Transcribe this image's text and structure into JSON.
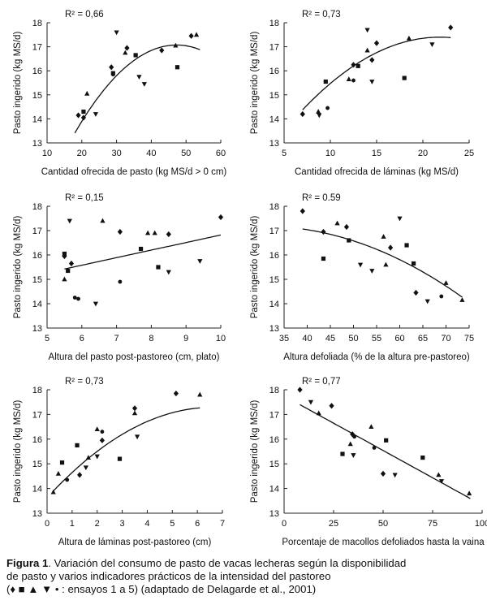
{
  "chart_data": [
    {
      "type": "scatter",
      "r2_label": "R² = 0,66",
      "xlabel": "Cantidad ofrecida de pasto (kg MS/d > 0 cm)",
      "ylabel": "Pasto ingerido (kg MS/d)",
      "xlim": [
        10,
        60
      ],
      "ylim": [
        13,
        18
      ],
      "xticks": [
        10,
        20,
        30,
        40,
        50,
        60
      ],
      "yticks": [
        13,
        14,
        15,
        16,
        17,
        18
      ],
      "points": [
        {
          "x": 19,
          "y": 14.15,
          "m": "diamond"
        },
        {
          "x": 20.5,
          "y": 14.05,
          "m": "diamond"
        },
        {
          "x": 28.5,
          "y": 16.15,
          "m": "diamond"
        },
        {
          "x": 33,
          "y": 16.95,
          "m": "diamond"
        },
        {
          "x": 43,
          "y": 16.85,
          "m": "diamond"
        },
        {
          "x": 51.5,
          "y": 17.45,
          "m": "diamond"
        },
        {
          "x": 20.5,
          "y": 14.3,
          "m": "square"
        },
        {
          "x": 29,
          "y": 15.9,
          "m": "square"
        },
        {
          "x": 35.5,
          "y": 16.65,
          "m": "square"
        },
        {
          "x": 47.5,
          "y": 16.15,
          "m": "square"
        },
        {
          "x": 21.5,
          "y": 15.05,
          "m": "triangle"
        },
        {
          "x": 32.5,
          "y": 16.75,
          "m": "triangle"
        },
        {
          "x": 47,
          "y": 17.05,
          "m": "triangle"
        },
        {
          "x": 53,
          "y": 17.5,
          "m": "triangle"
        },
        {
          "x": 24,
          "y": 14.2,
          "m": "tri-down"
        },
        {
          "x": 30,
          "y": 17.6,
          "m": "tri-down"
        },
        {
          "x": 36.5,
          "y": 15.75,
          "m": "tri-down"
        },
        {
          "x": 38,
          "y": 15.45,
          "m": "tri-down"
        },
        {
          "x": 29,
          "y": 15.85,
          "m": "circle"
        }
      ],
      "fit": {
        "x": [
          18,
          54
        ],
        "coef": [
          -0.00427,
          0.4038,
          7.527
        ]
      }
    },
    {
      "type": "scatter",
      "r2_label": "R² = 0,73",
      "xlabel": "Cantidad ofrecida de láminas (kg MS/d)",
      "ylabel": "Pasto ingerido (kg MS/d)",
      "xlim": [
        5,
        25
      ],
      "ylim": [
        13,
        18
      ],
      "xticks": [
        5,
        10,
        15,
        20,
        25
      ],
      "yticks": [
        13,
        14,
        15,
        16,
        17,
        18
      ],
      "points": [
        {
          "x": 7,
          "y": 14.2,
          "m": "diamond"
        },
        {
          "x": 12.5,
          "y": 16.25,
          "m": "diamond"
        },
        {
          "x": 14.5,
          "y": 16.45,
          "m": "diamond"
        },
        {
          "x": 15,
          "y": 17.15,
          "m": "diamond"
        },
        {
          "x": 23,
          "y": 17.8,
          "m": "diamond"
        },
        {
          "x": 9.5,
          "y": 15.55,
          "m": "square"
        },
        {
          "x": 13,
          "y": 16.2,
          "m": "square"
        },
        {
          "x": 18,
          "y": 15.7,
          "m": "square"
        },
        {
          "x": 8.7,
          "y": 14.3,
          "m": "triangle"
        },
        {
          "x": 12,
          "y": 15.65,
          "m": "triangle"
        },
        {
          "x": 14,
          "y": 16.85,
          "m": "triangle"
        },
        {
          "x": 18.5,
          "y": 17.35,
          "m": "triangle"
        },
        {
          "x": 8.8,
          "y": 14.15,
          "m": "tri-down"
        },
        {
          "x": 14,
          "y": 17.7,
          "m": "tri-down"
        },
        {
          "x": 14.5,
          "y": 15.55,
          "m": "tri-down"
        },
        {
          "x": 21,
          "y": 17.1,
          "m": "tri-down"
        },
        {
          "x": 9.7,
          "y": 14.45,
          "m": "circle"
        },
        {
          "x": 12.5,
          "y": 15.6,
          "m": "circle"
        }
      ],
      "fit": {
        "x": [
          7,
          23
        ],
        "coef": [
          -0.01372,
          0.5996,
          10.849
        ]
      }
    },
    {
      "type": "scatter",
      "r2_label": "R² = 0,15",
      "xlabel": "Altura del pasto post-pastoreo (cm, plato)",
      "ylabel": "Pasto ingerido (kg MS/d)",
      "xlim": [
        5,
        10
      ],
      "ylim": [
        13,
        18
      ],
      "xticks": [
        5,
        6,
        7,
        8,
        9,
        10
      ],
      "yticks": [
        13,
        14,
        15,
        16,
        17,
        18
      ],
      "points": [
        {
          "x": 5.5,
          "y": 15.95,
          "m": "diamond"
        },
        {
          "x": 5.7,
          "y": 15.65,
          "m": "diamond"
        },
        {
          "x": 7.1,
          "y": 16.95,
          "m": "diamond"
        },
        {
          "x": 8.5,
          "y": 16.85,
          "m": "diamond"
        },
        {
          "x": 10,
          "y": 17.55,
          "m": "diamond"
        },
        {
          "x": 5.5,
          "y": 16.05,
          "m": "square"
        },
        {
          "x": 5.6,
          "y": 15.35,
          "m": "square"
        },
        {
          "x": 7.7,
          "y": 16.25,
          "m": "square"
        },
        {
          "x": 8.2,
          "y": 15.5,
          "m": "square"
        },
        {
          "x": 5.5,
          "y": 15.0,
          "m": "triangle"
        },
        {
          "x": 6.6,
          "y": 17.4,
          "m": "triangle"
        },
        {
          "x": 7.9,
          "y": 16.9,
          "m": "triangle"
        },
        {
          "x": 8.1,
          "y": 16.9,
          "m": "triangle"
        },
        {
          "x": 5.65,
          "y": 17.4,
          "m": "tri-down"
        },
        {
          "x": 6.4,
          "y": 14.0,
          "m": "tri-down"
        },
        {
          "x": 8.5,
          "y": 15.3,
          "m": "tri-down"
        },
        {
          "x": 9.4,
          "y": 15.75,
          "m": "tri-down"
        },
        {
          "x": 5.8,
          "y": 14.25,
          "m": "circle"
        },
        {
          "x": 5.9,
          "y": 14.2,
          "m": "circle"
        },
        {
          "x": 7.1,
          "y": 14.9,
          "m": "circle"
        }
      ],
      "fit": {
        "x": [
          5.5,
          10
        ],
        "coef": [
          0,
          0.31,
          13.72
        ]
      }
    },
    {
      "type": "scatter",
      "r2_label": "R² = 0.59",
      "xlabel": "Altura defoliada (% de la altura pre-pastoreo)",
      "ylabel": "Pasto ingerido (kg MS/d)",
      "xlim": [
        35,
        75
      ],
      "ylim": [
        13,
        18
      ],
      "xticks": [
        35,
        40,
        45,
        50,
        55,
        60,
        65,
        70,
        75
      ],
      "yticks": [
        13,
        14,
        15,
        16,
        17,
        18
      ],
      "points": [
        {
          "x": 39,
          "y": 17.8,
          "m": "diamond"
        },
        {
          "x": 43.5,
          "y": 16.95,
          "m": "diamond"
        },
        {
          "x": 48.5,
          "y": 17.15,
          "m": "diamond"
        },
        {
          "x": 58,
          "y": 16.3,
          "m": "diamond"
        },
        {
          "x": 63.5,
          "y": 14.45,
          "m": "diamond"
        },
        {
          "x": 43.5,
          "y": 15.85,
          "m": "square"
        },
        {
          "x": 49,
          "y": 16.6,
          "m": "square"
        },
        {
          "x": 61.5,
          "y": 16.4,
          "m": "square"
        },
        {
          "x": 63,
          "y": 15.65,
          "m": "square"
        },
        {
          "x": 46.5,
          "y": 17.3,
          "m": "triangle"
        },
        {
          "x": 56.5,
          "y": 16.75,
          "m": "triangle"
        },
        {
          "x": 57,
          "y": 15.6,
          "m": "triangle"
        },
        {
          "x": 70,
          "y": 14.85,
          "m": "triangle"
        },
        {
          "x": 73.5,
          "y": 14.15,
          "m": "triangle"
        },
        {
          "x": 51.5,
          "y": 15.6,
          "m": "tri-down"
        },
        {
          "x": 54,
          "y": 15.35,
          "m": "tri-down"
        },
        {
          "x": 60,
          "y": 17.5,
          "m": "tri-down"
        },
        {
          "x": 66,
          "y": 14.1,
          "m": "tri-down"
        },
        {
          "x": 69,
          "y": 14.3,
          "m": "circle"
        }
      ],
      "fit": {
        "x": [
          39,
          73.5
        ],
        "coef": [
          -0.00157,
          0.0955,
          15.729
        ]
      }
    },
    {
      "type": "scatter",
      "r2_label": "R² = 0,73",
      "xlabel": "Altura de láminas post-pastoreo (cm)",
      "ylabel": "Pasto ingerido (kg MS/d)",
      "xlim": [
        0,
        7
      ],
      "ylim": [
        13,
        18
      ],
      "xticks": [
        0,
        1,
        2,
        3,
        4,
        5,
        6,
        7
      ],
      "yticks": [
        13,
        14,
        15,
        16,
        17,
        18
      ],
      "points": [
        {
          "x": 1.3,
          "y": 14.55,
          "m": "diamond"
        },
        {
          "x": 2.2,
          "y": 15.95,
          "m": "diamond"
        },
        {
          "x": 3.5,
          "y": 17.25,
          "m": "diamond"
        },
        {
          "x": 5.15,
          "y": 17.85,
          "m": "diamond"
        },
        {
          "x": 0.6,
          "y": 15.05,
          "m": "square"
        },
        {
          "x": 1.2,
          "y": 15.75,
          "m": "square"
        },
        {
          "x": 2.9,
          "y": 15.2,
          "m": "square"
        },
        {
          "x": 0.25,
          "y": 13.85,
          "m": "triangle"
        },
        {
          "x": 0.45,
          "y": 14.6,
          "m": "triangle"
        },
        {
          "x": 1.65,
          "y": 15.25,
          "m": "triangle"
        },
        {
          "x": 2.0,
          "y": 16.4,
          "m": "triangle"
        },
        {
          "x": 3.5,
          "y": 17.05,
          "m": "triangle"
        },
        {
          "x": 6.1,
          "y": 17.8,
          "m": "triangle"
        },
        {
          "x": 1.55,
          "y": 14.85,
          "m": "tri-down"
        },
        {
          "x": 2.0,
          "y": 15.3,
          "m": "tri-down"
        },
        {
          "x": 3.6,
          "y": 16.1,
          "m": "tri-down"
        },
        {
          "x": 0.8,
          "y": 14.35,
          "m": "circle"
        },
        {
          "x": 2.2,
          "y": 16.3,
          "m": "circle"
        }
      ],
      "fit": {
        "x": [
          0.25,
          6.1
        ],
        "coef": [
          -0.0835,
          1.1063,
          13.6248
        ]
      }
    },
    {
      "type": "scatter",
      "r2_label": "R² = 0,77",
      "xlabel": "Porcentaje de macollos defoliados hasta la vaina",
      "ylabel": "Pasto ingerido (kg MS/d)",
      "xlim": [
        0,
        100
      ],
      "ylim": [
        13,
        18
      ],
      "xticks": [
        0,
        25,
        50,
        75,
        100
      ],
      "yticks": [
        13,
        14,
        15,
        16,
        17,
        18
      ],
      "points": [
        {
          "x": 8,
          "y": 18.0,
          "m": "diamond"
        },
        {
          "x": 24,
          "y": 17.35,
          "m": "diamond"
        },
        {
          "x": 34.5,
          "y": 16.2,
          "m": "diamond"
        },
        {
          "x": 50,
          "y": 14.6,
          "m": "diamond"
        },
        {
          "x": 29.5,
          "y": 15.4,
          "m": "square"
        },
        {
          "x": 51.5,
          "y": 15.95,
          "m": "square"
        },
        {
          "x": 70,
          "y": 15.25,
          "m": "square"
        },
        {
          "x": 17.5,
          "y": 17.05,
          "m": "triangle"
        },
        {
          "x": 33.5,
          "y": 15.8,
          "m": "triangle"
        },
        {
          "x": 44,
          "y": 16.5,
          "m": "triangle"
        },
        {
          "x": 78,
          "y": 14.55,
          "m": "triangle"
        },
        {
          "x": 93.5,
          "y": 13.8,
          "m": "triangle"
        },
        {
          "x": 13.5,
          "y": 17.5,
          "m": "tri-down"
        },
        {
          "x": 35,
          "y": 15.35,
          "m": "tri-down"
        },
        {
          "x": 56,
          "y": 14.55,
          "m": "tri-down"
        },
        {
          "x": 79.5,
          "y": 14.3,
          "m": "tri-down"
        },
        {
          "x": 35.5,
          "y": 16.1,
          "m": "circle"
        },
        {
          "x": 45.5,
          "y": 15.65,
          "m": "circle"
        }
      ],
      "fit": {
        "x": [
          8,
          94
        ],
        "coef": [
          0,
          -0.0442,
          17.75
        ]
      }
    }
  ],
  "caption": {
    "label": "Figura 1",
    "line1": ". Variación del consumo de pasto de vacas lecheras según la disponibilidad",
    "line2": "de pasto y varios indicadores prácticos de la intensidad del pastoreo",
    "line3": "(♦ ■ ▲ ▼ •  : ensayos 1 a 5) (adaptado de Delagarde et al., 2001)"
  }
}
